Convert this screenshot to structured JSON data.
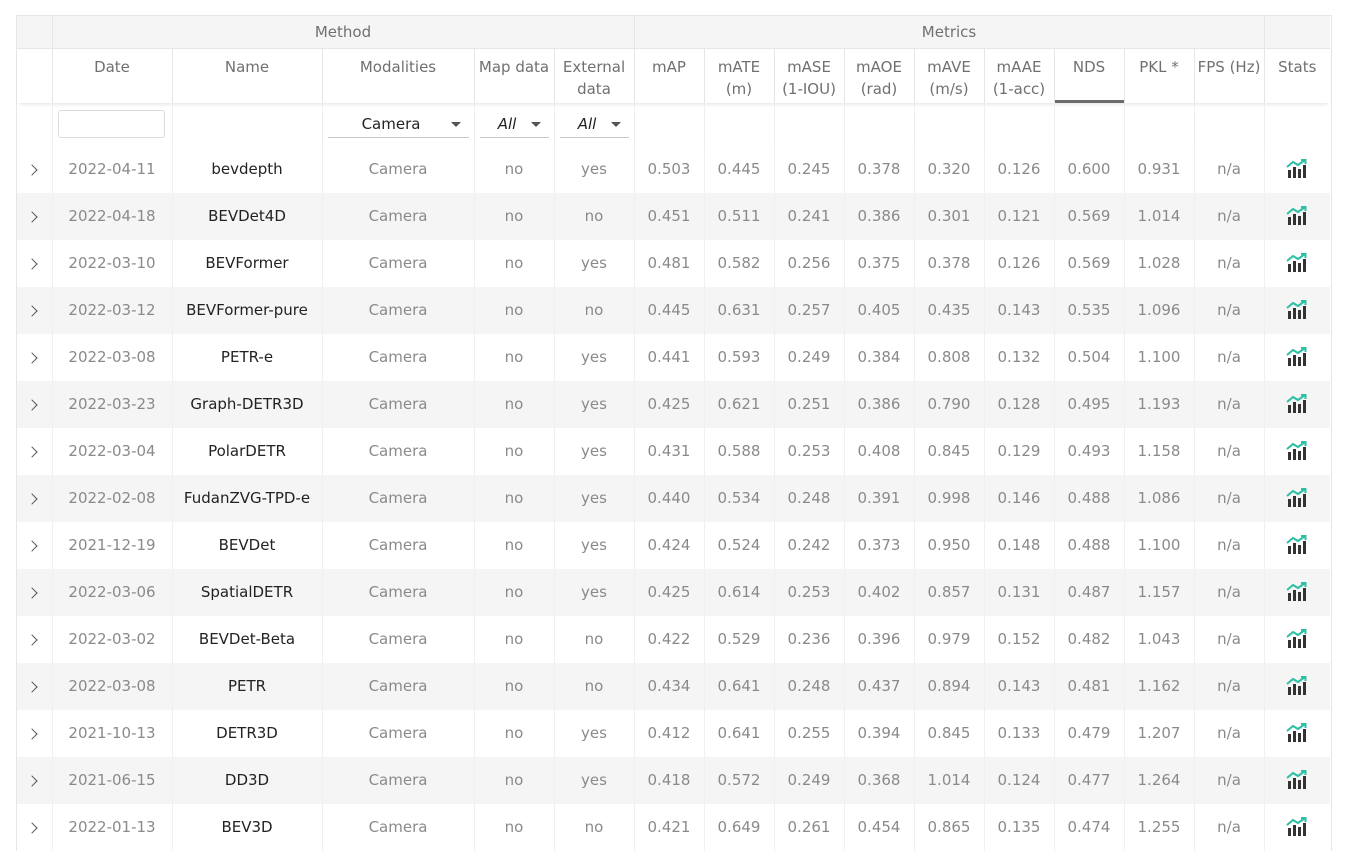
{
  "group_headers": {
    "method": "Method",
    "metrics": "Metrics"
  },
  "columns": {
    "date": "Date",
    "name": "Name",
    "modalities": "Modalities",
    "map_data": "Map data",
    "external_data": "External data",
    "map": "mAP",
    "mate": "mATE (m)",
    "mase": "mASE (1-IOU)",
    "maoe": "mAOE (rad)",
    "mave": "mAVE (m/s)",
    "maae": "mAAE (1-acc)",
    "nds": "NDS",
    "pkl": "PKL *",
    "fps": "FPS (Hz)",
    "stats": "Stats"
  },
  "filters": {
    "date_value": "",
    "modalities": "Camera",
    "map_data": "All",
    "external_data": "All"
  },
  "sorted_column": "NDS",
  "colors": {
    "stats_icon": "#333333",
    "stats_arrow": "#2bbfa4"
  },
  "rows": [
    {
      "date": "2022-04-11",
      "name": "bevdepth",
      "modalities": "Camera",
      "map_data": "no",
      "external_data": "yes",
      "map": "0.503",
      "mate": "0.445",
      "mase": "0.245",
      "maoe": "0.378",
      "mave": "0.320",
      "maae": "0.126",
      "nds": "0.600",
      "pkl": "0.931",
      "fps": "n/a"
    },
    {
      "date": "2022-04-18",
      "name": "BEVDet4D",
      "modalities": "Camera",
      "map_data": "no",
      "external_data": "no",
      "map": "0.451",
      "mate": "0.511",
      "mase": "0.241",
      "maoe": "0.386",
      "mave": "0.301",
      "maae": "0.121",
      "nds": "0.569",
      "pkl": "1.014",
      "fps": "n/a"
    },
    {
      "date": "2022-03-10",
      "name": "BEVFormer",
      "modalities": "Camera",
      "map_data": "no",
      "external_data": "yes",
      "map": "0.481",
      "mate": "0.582",
      "mase": "0.256",
      "maoe": "0.375",
      "mave": "0.378",
      "maae": "0.126",
      "nds": "0.569",
      "pkl": "1.028",
      "fps": "n/a"
    },
    {
      "date": "2022-03-12",
      "name": "BEVFormer-pure",
      "modalities": "Camera",
      "map_data": "no",
      "external_data": "no",
      "map": "0.445",
      "mate": "0.631",
      "mase": "0.257",
      "maoe": "0.405",
      "mave": "0.435",
      "maae": "0.143",
      "nds": "0.535",
      "pkl": "1.096",
      "fps": "n/a"
    },
    {
      "date": "2022-03-08",
      "name": "PETR-e",
      "modalities": "Camera",
      "map_data": "no",
      "external_data": "yes",
      "map": "0.441",
      "mate": "0.593",
      "mase": "0.249",
      "maoe": "0.384",
      "mave": "0.808",
      "maae": "0.132",
      "nds": "0.504",
      "pkl": "1.100",
      "fps": "n/a"
    },
    {
      "date": "2022-03-23",
      "name": "Graph-DETR3D",
      "modalities": "Camera",
      "map_data": "no",
      "external_data": "yes",
      "map": "0.425",
      "mate": "0.621",
      "mase": "0.251",
      "maoe": "0.386",
      "mave": "0.790",
      "maae": "0.128",
      "nds": "0.495",
      "pkl": "1.193",
      "fps": "n/a"
    },
    {
      "date": "2022-03-04",
      "name": "PolarDETR",
      "modalities": "Camera",
      "map_data": "no",
      "external_data": "yes",
      "map": "0.431",
      "mate": "0.588",
      "mase": "0.253",
      "maoe": "0.408",
      "mave": "0.845",
      "maae": "0.129",
      "nds": "0.493",
      "pkl": "1.158",
      "fps": "n/a"
    },
    {
      "date": "2022-02-08",
      "name": "FudanZVG-TPD-e",
      "modalities": "Camera",
      "map_data": "no",
      "external_data": "yes",
      "map": "0.440",
      "mate": "0.534",
      "mase": "0.248",
      "maoe": "0.391",
      "mave": "0.998",
      "maae": "0.146",
      "nds": "0.488",
      "pkl": "1.086",
      "fps": "n/a"
    },
    {
      "date": "2021-12-19",
      "name": "BEVDet",
      "modalities": "Camera",
      "map_data": "no",
      "external_data": "yes",
      "map": "0.424",
      "mate": "0.524",
      "mase": "0.242",
      "maoe": "0.373",
      "mave": "0.950",
      "maae": "0.148",
      "nds": "0.488",
      "pkl": "1.100",
      "fps": "n/a"
    },
    {
      "date": "2022-03-06",
      "name": "SpatialDETR",
      "modalities": "Camera",
      "map_data": "no",
      "external_data": "yes",
      "map": "0.425",
      "mate": "0.614",
      "mase": "0.253",
      "maoe": "0.402",
      "mave": "0.857",
      "maae": "0.131",
      "nds": "0.487",
      "pkl": "1.157",
      "fps": "n/a"
    },
    {
      "date": "2022-03-02",
      "name": "BEVDet-Beta",
      "modalities": "Camera",
      "map_data": "no",
      "external_data": "no",
      "map": "0.422",
      "mate": "0.529",
      "mase": "0.236",
      "maoe": "0.396",
      "mave": "0.979",
      "maae": "0.152",
      "nds": "0.482",
      "pkl": "1.043",
      "fps": "n/a"
    },
    {
      "date": "2022-03-08",
      "name": "PETR",
      "modalities": "Camera",
      "map_data": "no",
      "external_data": "no",
      "map": "0.434",
      "mate": "0.641",
      "mase": "0.248",
      "maoe": "0.437",
      "mave": "0.894",
      "maae": "0.143",
      "nds": "0.481",
      "pkl": "1.162",
      "fps": "n/a"
    },
    {
      "date": "2021-10-13",
      "name": "DETR3D",
      "modalities": "Camera",
      "map_data": "no",
      "external_data": "yes",
      "map": "0.412",
      "mate": "0.641",
      "mase": "0.255",
      "maoe": "0.394",
      "mave": "0.845",
      "maae": "0.133",
      "nds": "0.479",
      "pkl": "1.207",
      "fps": "n/a"
    },
    {
      "date": "2021-06-15",
      "name": "DD3D",
      "modalities": "Camera",
      "map_data": "no",
      "external_data": "yes",
      "map": "0.418",
      "mate": "0.572",
      "mase": "0.249",
      "maoe": "0.368",
      "mave": "1.014",
      "maae": "0.124",
      "nds": "0.477",
      "pkl": "1.264",
      "fps": "n/a"
    },
    {
      "date": "2022-01-13",
      "name": "BEV3D",
      "modalities": "Camera",
      "map_data": "no",
      "external_data": "no",
      "map": "0.421",
      "mate": "0.649",
      "mase": "0.261",
      "maoe": "0.454",
      "mave": "0.865",
      "maae": "0.135",
      "nds": "0.474",
      "pkl": "1.255",
      "fps": "n/a"
    }
  ]
}
